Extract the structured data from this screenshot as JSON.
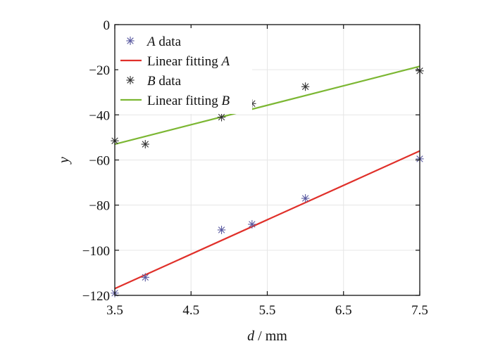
{
  "chart_data": {
    "type": "scatter",
    "xlabel_var": "d",
    "xlabel_unit": " / mm",
    "ylabel": "y",
    "xlim": [
      3.5,
      7.5
    ],
    "ylim": [
      -120,
      0
    ],
    "xticks": [
      3.5,
      4.5,
      5.5,
      6.5,
      7.5
    ],
    "xtick_labels": [
      "3.5",
      "4.5",
      "5.5",
      "6.5",
      "7.5"
    ],
    "yticks": [
      0,
      -20,
      -40,
      -60,
      -80,
      -100,
      -120
    ],
    "ytick_labels": [
      "0",
      "−20",
      "−40",
      "−60",
      "−80",
      "−100",
      "−120"
    ],
    "grid": true,
    "legend_position": "top-left",
    "series": [
      {
        "key": "A",
        "kind": "scatter",
        "marker": "asterisk",
        "color": "#5a5aa0",
        "legend_var": "A",
        "legend_suffix": " data",
        "x": [
          3.5,
          3.9,
          4.9,
          5.3,
          6.0,
          7.5
        ],
        "y": [
          -119,
          -112,
          -91,
          -88.5,
          -77,
          -59.5
        ]
      },
      {
        "key": "fitA",
        "kind": "line",
        "color": "#e0302a",
        "legend_text": "Linear fitting ",
        "legend_var": "A",
        "x": [
          3.5,
          7.5
        ],
        "y": [
          -117,
          -56
        ]
      },
      {
        "key": "B",
        "kind": "scatter",
        "marker": "asterisk",
        "color": "#333333",
        "legend_var": "B",
        "legend_suffix": " data",
        "x": [
          3.5,
          3.9,
          4.9,
          5.3,
          6.0,
          7.5
        ],
        "y": [
          -51.5,
          -53,
          -41,
          -35,
          -27.5,
          -20.5
        ]
      },
      {
        "key": "fitB",
        "kind": "line",
        "color": "#7cb733",
        "legend_text": "Linear fitting ",
        "legend_var": "B",
        "x": [
          3.5,
          7.5
        ],
        "y": [
          -53,
          -18.5
        ]
      }
    ]
  }
}
